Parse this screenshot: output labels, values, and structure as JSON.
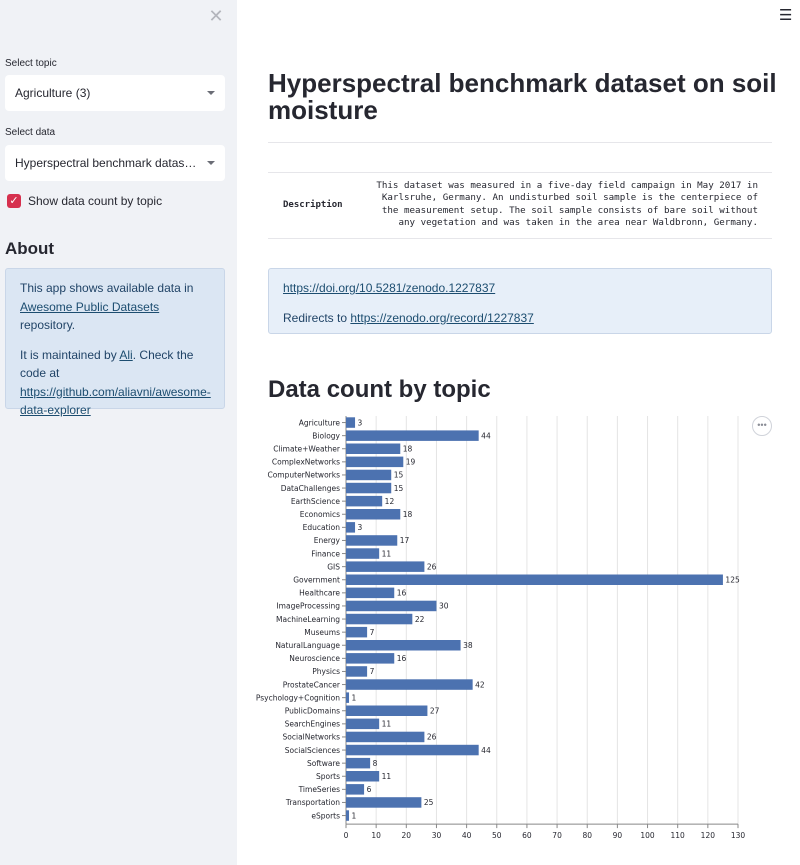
{
  "sidebar": {
    "close_icon": "close-icon",
    "topic_label": "Select topic",
    "topic_value": "Agriculture (3)",
    "data_label": "Select data",
    "data_value": "Hyperspectral benchmark dataset on soil moisture",
    "checkbox_label": "Show data count by topic",
    "checkbox_checked": true,
    "about_title": "About",
    "about": {
      "p1_before": "This app shows available data in ",
      "p1_link": "Awesome Public Datasets",
      "p1_after": " repository.",
      "p2_before": "It is maintained by ",
      "p2_link": "Ali",
      "p2_mid": ". Check the code at ",
      "p2_link2": "https://github.com/aliavni/awesome-data-explorer"
    }
  },
  "main": {
    "menu_icon": "hamburger-menu-icon",
    "title": "Hyperspectral benchmark dataset on soil moisture",
    "description_key": "Description",
    "description_value": "This dataset was measured in a five-day field campaign in May 2017 in Karlsruhe, Germany. An undisturbed soil sample is the centerpiece of the measurement setup. The soil sample consists of bare soil without any vegetation and was taken in the area near Waldbronn, Germany.",
    "doi_link": "https://doi.org/10.5281/zenodo.1227837",
    "redirect_text": "Redirects to ",
    "redirect_link": "https://zenodo.org/record/1227837",
    "section_title": "Data count by topic",
    "more_icon": "more-options-icon"
  },
  "colors": {
    "bar": "#4c72b0",
    "checkbox": "#d6304e",
    "sidebar_bg": "#f0f2f6",
    "info_bg": "#dbe6f3"
  },
  "chart_data": {
    "type": "bar",
    "orientation": "horizontal",
    "title": "",
    "xlabel": "",
    "ylabel": "",
    "xlim": [
      0,
      130
    ],
    "xticks": [
      0,
      10,
      20,
      30,
      40,
      50,
      60,
      70,
      80,
      90,
      100,
      110,
      120,
      130
    ],
    "grid": true,
    "categories": [
      "Agriculture",
      "Biology",
      "Climate+Weather",
      "ComplexNetworks",
      "ComputerNetworks",
      "DataChallenges",
      "EarthScience",
      "Economics",
      "Education",
      "Energy",
      "Finance",
      "GIS",
      "Government",
      "Healthcare",
      "ImageProcessing",
      "MachineLearning",
      "Museums",
      "NaturalLanguage",
      "Neuroscience",
      "Physics",
      "ProstateCancer",
      "Psychology+Cognition",
      "PublicDomains",
      "SearchEngines",
      "SocialNetworks",
      "SocialSciences",
      "Software",
      "Sports",
      "TimeSeries",
      "Transportation",
      "eSports"
    ],
    "values": [
      3,
      44,
      18,
      19,
      15,
      15,
      12,
      18,
      3,
      17,
      11,
      26,
      125,
      16,
      30,
      22,
      7,
      38,
      16,
      7,
      42,
      1,
      27,
      11,
      26,
      44,
      8,
      11,
      6,
      25,
      1
    ]
  }
}
